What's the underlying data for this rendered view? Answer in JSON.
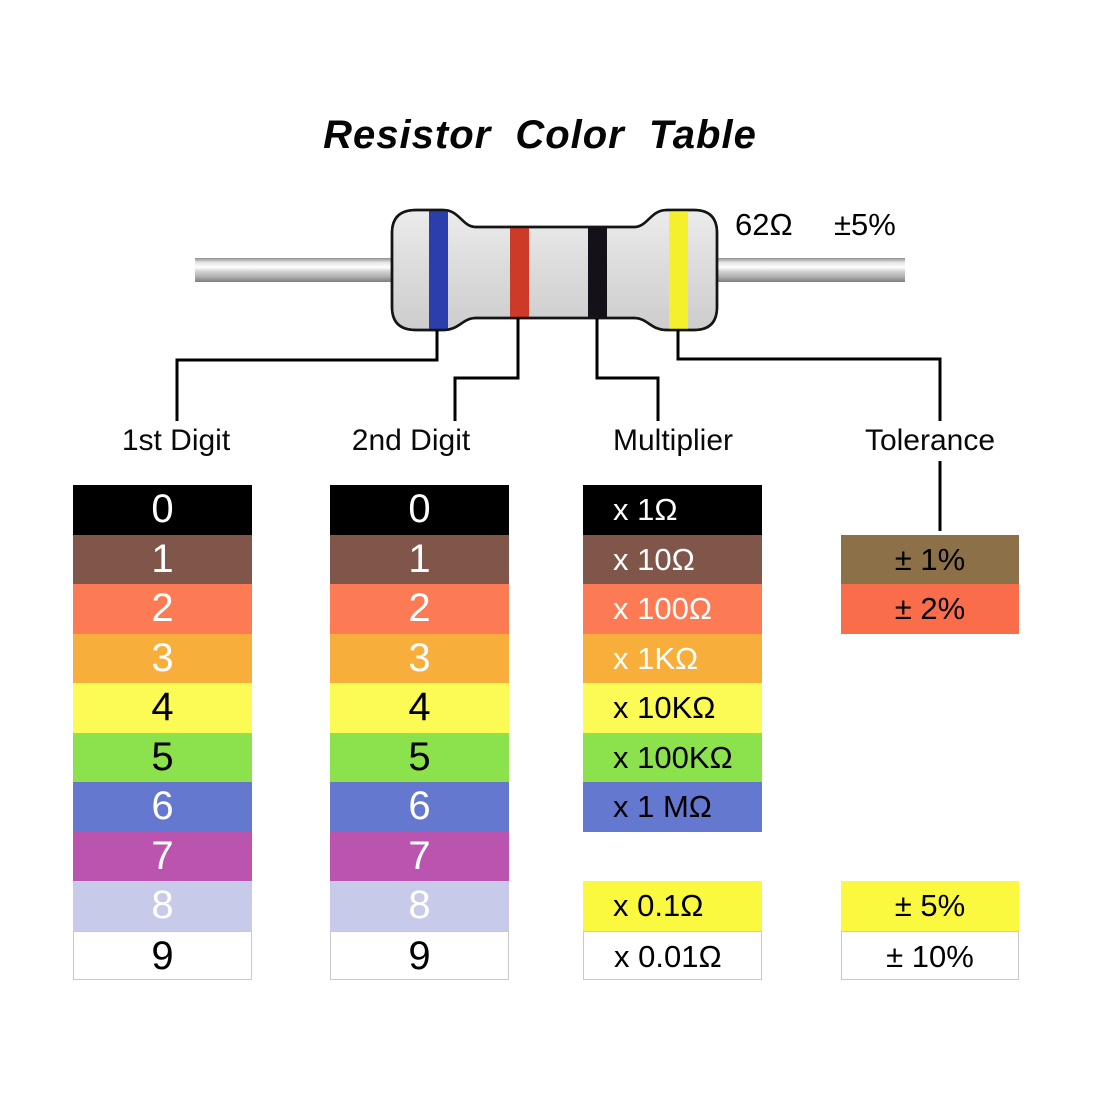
{
  "title": "Resistor Color Table",
  "resistor": {
    "value_label": "62Ω",
    "tolerance_label": "±5%",
    "bands": [
      {
        "name": "1st-digit-band",
        "color_name": "blue",
        "color": "#2C3DAC"
      },
      {
        "name": "2nd-digit-band",
        "color_name": "red",
        "color": "#CE3A28"
      },
      {
        "name": "multiplier-band",
        "color_name": "black",
        "color": "#141218"
      },
      {
        "name": "tolerance-band",
        "color_name": "yellow",
        "color": "#F5F02C"
      }
    ]
  },
  "columns": {
    "digit1": {
      "header": "1st Digit",
      "rows": [
        {
          "row": 0,
          "label": "0",
          "bg": "#000000",
          "fg": "#FFFFFF"
        },
        {
          "row": 1,
          "label": "1",
          "bg": "#80564A",
          "fg": "#FFFFFF"
        },
        {
          "row": 2,
          "label": "2",
          "bg": "#FC7B55",
          "fg": "#FFFFFF"
        },
        {
          "row": 3,
          "label": "3",
          "bg": "#F7AE3B",
          "fg": "#FFFFFF"
        },
        {
          "row": 4,
          "label": "4",
          "bg": "#FCFA55",
          "fg": "#000000"
        },
        {
          "row": 5,
          "label": "5",
          "bg": "#8BE24C",
          "fg": "#000000"
        },
        {
          "row": 6,
          "label": "6",
          "bg": "#6578CF",
          "fg": "#FFFFFF"
        },
        {
          "row": 7,
          "label": "7",
          "bg": "#BB54AF",
          "fg": "#FFFFFF"
        },
        {
          "row": 8,
          "label": "8",
          "bg": "#C7CAE8",
          "fg": "#FFFFFF"
        },
        {
          "row": 9,
          "label": "9",
          "bg": "#FFFFFF",
          "fg": "#000000",
          "border": true
        }
      ]
    },
    "digit2": {
      "header": "2nd Digit",
      "rows": [
        {
          "row": 0,
          "label": "0",
          "bg": "#000000",
          "fg": "#FFFFFF"
        },
        {
          "row": 1,
          "label": "1",
          "bg": "#80564A",
          "fg": "#FFFFFF"
        },
        {
          "row": 2,
          "label": "2",
          "bg": "#FC7B55",
          "fg": "#FFFFFF"
        },
        {
          "row": 3,
          "label": "3",
          "bg": "#F7AE3B",
          "fg": "#FFFFFF"
        },
        {
          "row": 4,
          "label": "4",
          "bg": "#FCFA55",
          "fg": "#000000"
        },
        {
          "row": 5,
          "label": "5",
          "bg": "#8BE24C",
          "fg": "#000000"
        },
        {
          "row": 6,
          "label": "6",
          "bg": "#6578CF",
          "fg": "#FFFFFF"
        },
        {
          "row": 7,
          "label": "7",
          "bg": "#BB54AF",
          "fg": "#FFFFFF"
        },
        {
          "row": 8,
          "label": "8",
          "bg": "#C7CAE8",
          "fg": "#FFFFFF"
        },
        {
          "row": 9,
          "label": "9",
          "bg": "#FFFFFF",
          "fg": "#000000",
          "border": true
        }
      ]
    },
    "multiplier": {
      "header": "Multiplier",
      "rows": [
        {
          "row": 0,
          "label": "x 1Ω",
          "bg": "#000000",
          "fg": "#FFFFFF"
        },
        {
          "row": 1,
          "label": "x 10Ω",
          "bg": "#80564A",
          "fg": "#FFFFFF"
        },
        {
          "row": 2,
          "label": "x 100Ω",
          "bg": "#FC7B55",
          "fg": "#FFFFFF"
        },
        {
          "row": 3,
          "label": "x 1KΩ",
          "bg": "#F7AE3B",
          "fg": "#FFFFFF"
        },
        {
          "row": 4,
          "label": "x 10KΩ",
          "bg": "#FCFA55",
          "fg": "#000000"
        },
        {
          "row": 5,
          "label": "x 100KΩ",
          "bg": "#8BE24C",
          "fg": "#000000"
        },
        {
          "row": 6,
          "label": "x 1 MΩ",
          "bg": "#6578CF",
          "fg": "#000000"
        },
        {
          "row": 8,
          "label": "x 0.1Ω",
          "bg": "#FBF840",
          "fg": "#000000"
        },
        {
          "row": 9,
          "label": "x 0.01Ω",
          "bg": "#FFFFFF",
          "fg": "#000000",
          "border": true
        }
      ]
    },
    "tolerance": {
      "header": "Tolerance",
      "rows": [
        {
          "row": 1,
          "label": "± 1%",
          "bg": "#8B7048",
          "fg": "#000000"
        },
        {
          "row": 2,
          "label": "± 2%",
          "bg": "#FA6D4B",
          "fg": "#000000"
        },
        {
          "row": 8,
          "label": "± 5%",
          "bg": "#FBF840",
          "fg": "#000000"
        },
        {
          "row": 9,
          "label": "± 10%",
          "bg": "#FFFFFF",
          "fg": "#000000",
          "border": true
        }
      ]
    }
  }
}
